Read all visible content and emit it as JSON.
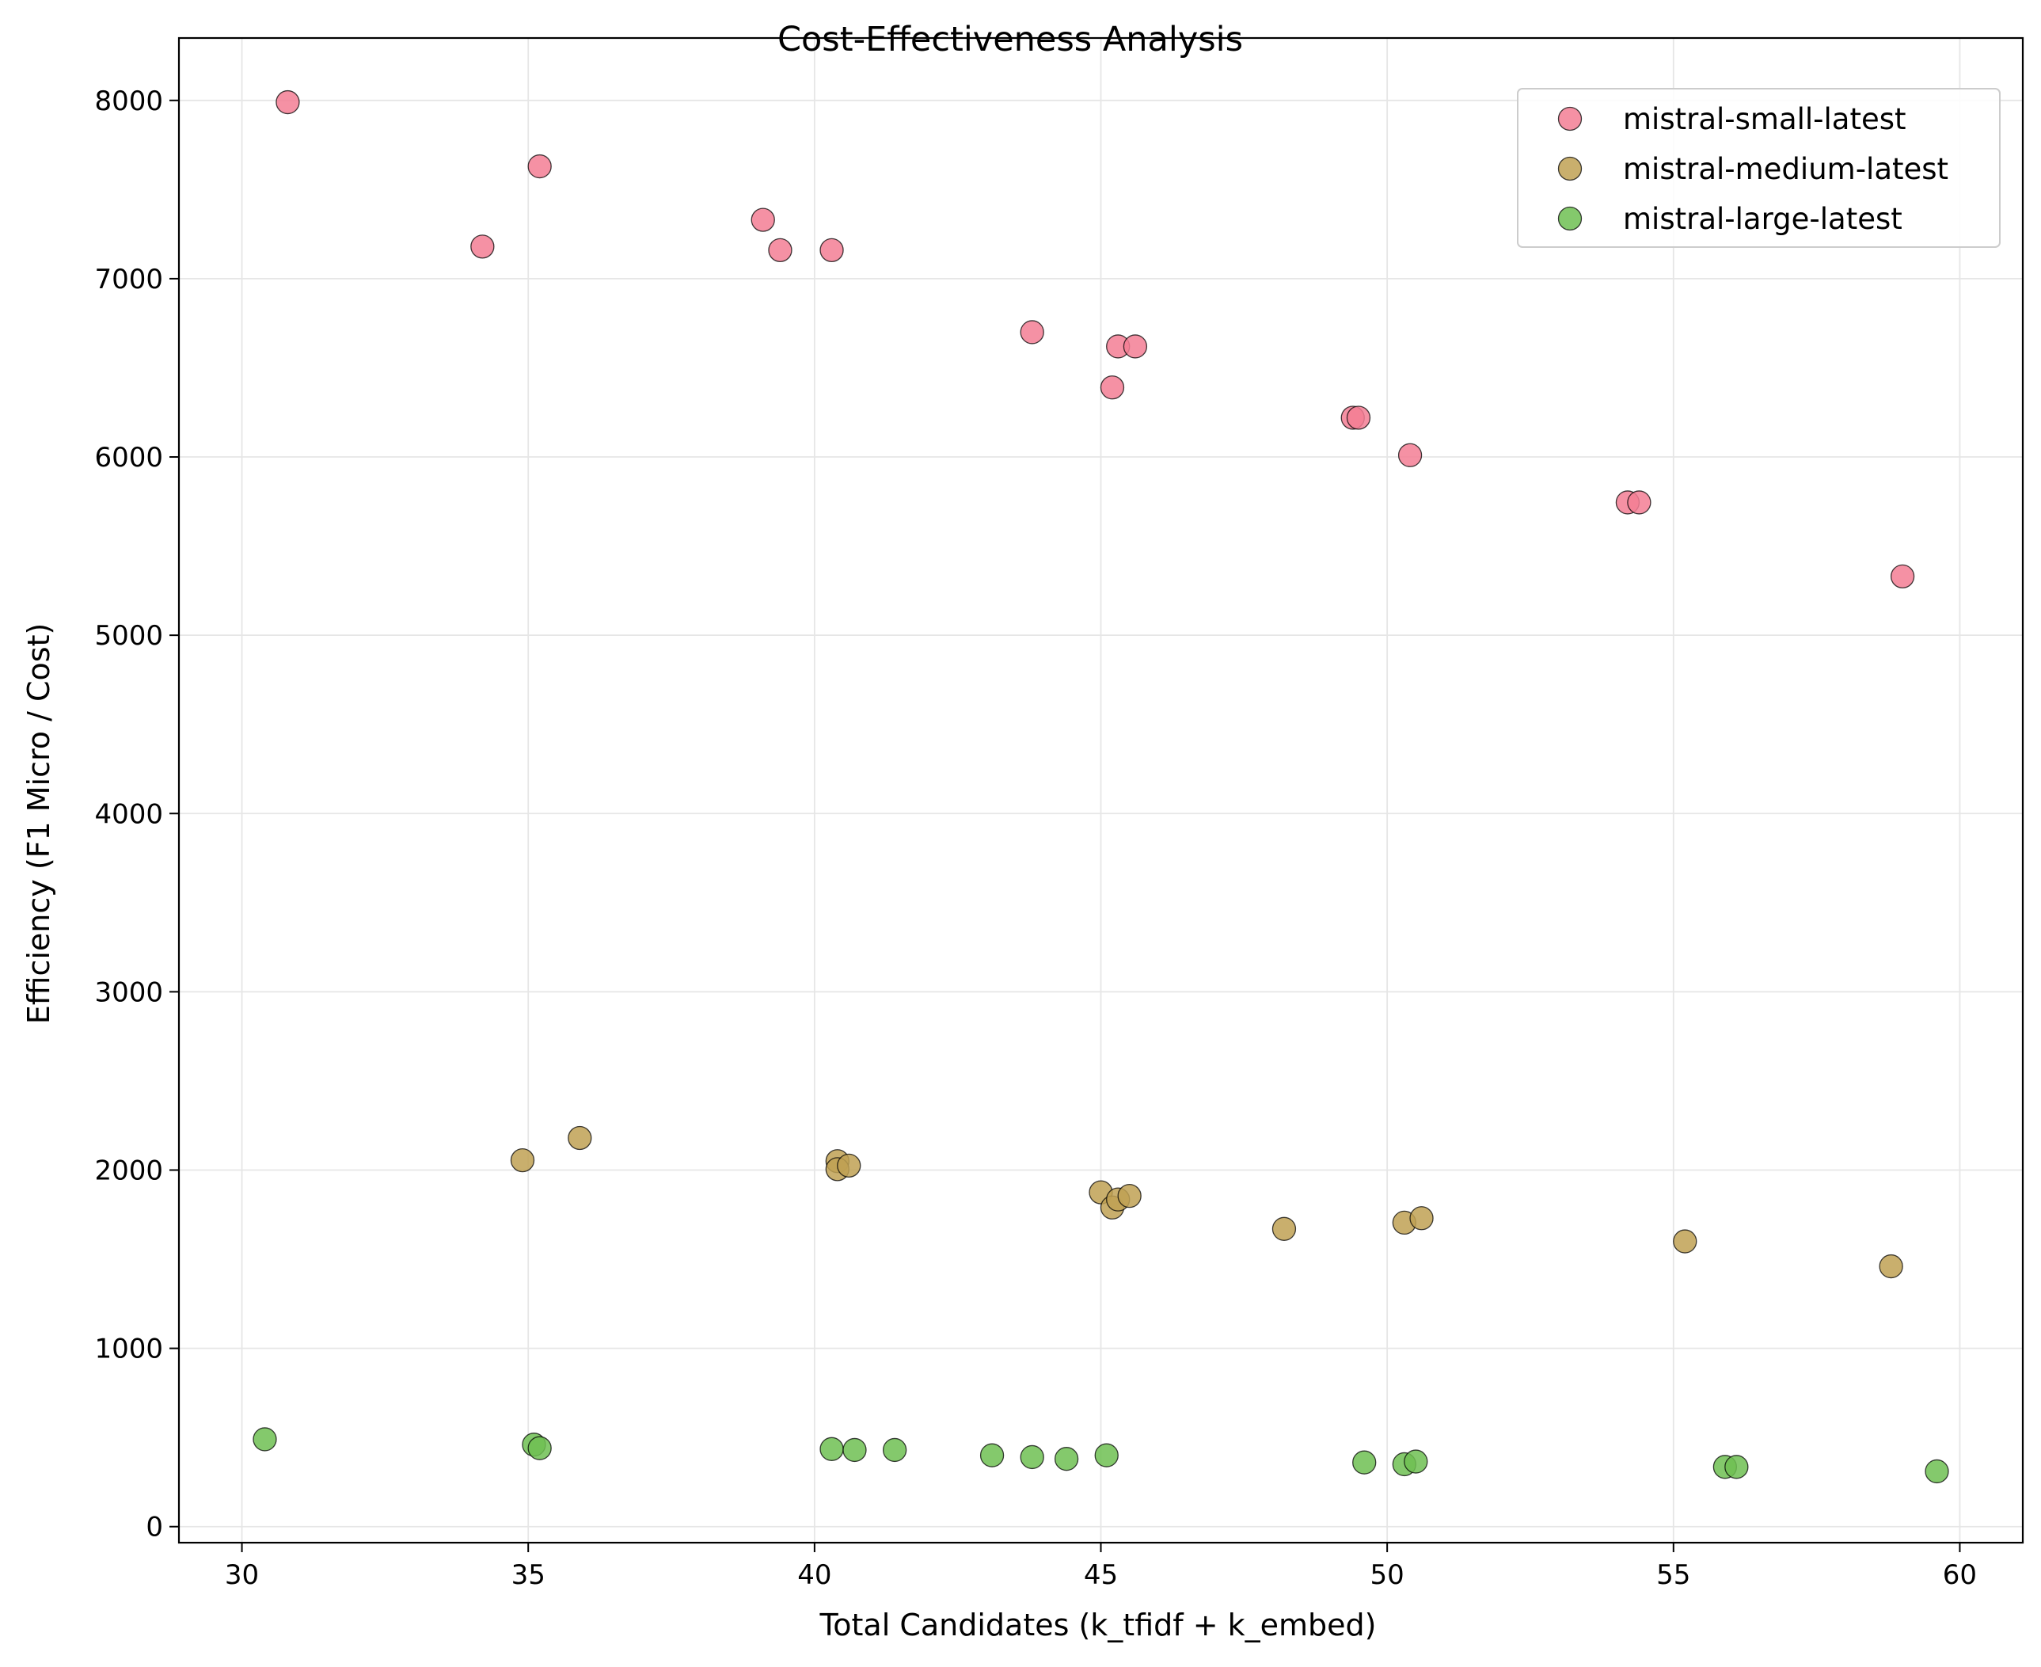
{
  "chart_data": {
    "type": "scatter",
    "title": "Cost-Effectiveness Analysis",
    "xlabel": "Total Candidates (k_tfidf + k_embed)",
    "ylabel": "Efficiency (F1 Micro / Cost)",
    "xlim": [
      28.9,
      61.1
    ],
    "ylim": [
      -90,
      8350
    ],
    "xticks": [
      30,
      35,
      40,
      45,
      50,
      55,
      60
    ],
    "yticks": [
      0,
      1000,
      2000,
      3000,
      4000,
      5000,
      6000,
      7000,
      8000
    ],
    "grid": true,
    "legend_position": "top-right",
    "series": [
      {
        "name": "mistral-small-latest",
        "color": "#f37e94",
        "points": [
          [
            30.8,
            7990
          ],
          [
            34.2,
            7180
          ],
          [
            35.2,
            7630
          ],
          [
            39.1,
            7330
          ],
          [
            39.4,
            7160
          ],
          [
            40.3,
            7160
          ],
          [
            43.8,
            6700
          ],
          [
            45.2,
            6390
          ],
          [
            45.3,
            6620
          ],
          [
            45.6,
            6620
          ],
          [
            49.4,
            6220
          ],
          [
            49.5,
            6220
          ],
          [
            50.4,
            6010
          ],
          [
            54.2,
            5745
          ],
          [
            54.4,
            5745
          ],
          [
            59.0,
            5330
          ]
        ]
      },
      {
        "name": "mistral-medium-latest",
        "color": "#c0a153",
        "points": [
          [
            34.9,
            2055
          ],
          [
            35.9,
            2180
          ],
          [
            40.4,
            2050
          ],
          [
            40.4,
            2005
          ],
          [
            40.6,
            2025
          ],
          [
            45.0,
            1875
          ],
          [
            45.2,
            1790
          ],
          [
            45.3,
            1835
          ],
          [
            45.5,
            1855
          ],
          [
            48.2,
            1670
          ],
          [
            50.3,
            1705
          ],
          [
            50.6,
            1730
          ],
          [
            55.2,
            1600
          ],
          [
            58.8,
            1460
          ]
        ]
      },
      {
        "name": "mistral-large-latest",
        "color": "#6ec052",
        "points": [
          [
            30.4,
            490
          ],
          [
            35.1,
            460
          ],
          [
            35.2,
            440
          ],
          [
            40.3,
            435
          ],
          [
            40.7,
            430
          ],
          [
            41.4,
            430
          ],
          [
            43.1,
            400
          ],
          [
            43.8,
            390
          ],
          [
            44.4,
            380
          ],
          [
            45.1,
            400
          ],
          [
            49.6,
            360
          ],
          [
            50.3,
            350
          ],
          [
            50.5,
            365
          ],
          [
            55.9,
            335
          ],
          [
            56.1,
            335
          ],
          [
            59.6,
            310
          ]
        ]
      }
    ]
  }
}
